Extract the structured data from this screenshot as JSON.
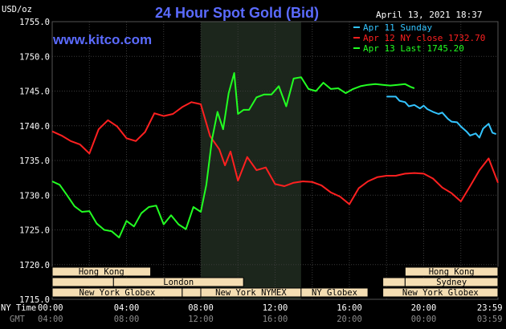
{
  "chart_data": {
    "type": "line",
    "title": "24 Hour Spot Gold (Bid)",
    "website": "www.kitco.com",
    "datetime": "April 13, 2021 18:37",
    "ylabel": "USD/oz",
    "ylim": [
      1715,
      1755
    ],
    "y_ticks": [
      "1755.0",
      "1750.0",
      "1745.0",
      "1740.0",
      "1735.0",
      "1730.0",
      "1725.0",
      "1720.0",
      "1715.0"
    ],
    "grid": true,
    "legend_position": "top-right",
    "x_hours": [
      0,
      24
    ],
    "x_axis_labels": {
      "row1_label": "NY Time",
      "row2_label": "GMT",
      "ny_time": [
        "00:00",
        "04:00",
        "08:00",
        "12:00",
        "16:00",
        "20:00",
        "23:59"
      ],
      "gmt": [
        "04:00",
        "08:00",
        "12:00",
        "16:00",
        "20:00",
        "00:00",
        "03:59"
      ]
    },
    "highlight_range_hours": [
      8.0,
      13.4
    ],
    "series": [
      {
        "name": "Apr 11 Sunday",
        "color": "#33c4ff",
        "legend_label": "Apr 11 Sunday",
        "x": [
          18,
          18.5,
          18.7,
          19,
          19.2,
          19.5,
          19.8,
          20,
          20.2,
          20.5,
          20.8,
          21,
          21.3,
          21.5,
          21.8,
          22,
          22.3,
          22.5,
          22.8,
          23,
          23.2,
          23.5,
          23.7,
          23.9
        ],
        "y": [
          1744.2,
          1744.2,
          1743.6,
          1743.4,
          1742.8,
          1743.0,
          1742.5,
          1742.9,
          1742.4,
          1742.0,
          1741.7,
          1741.9,
          1741.0,
          1740.6,
          1740.5,
          1739.9,
          1739.2,
          1738.6,
          1738.9,
          1738.3,
          1739.6,
          1740.3,
          1739.0,
          1738.8
        ]
      },
      {
        "name": "Apr 12 NY close 1732.70",
        "color": "#ff2020",
        "legend_label": "Apr 12 NY close 1732.70",
        "x": [
          0,
          0.5,
          1,
          1.5,
          2,
          2.5,
          3,
          3.5,
          4,
          4.5,
          5,
          5.5,
          6,
          6.5,
          7,
          7.5,
          8,
          8.5,
          9,
          9.3,
          9.6,
          10,
          10.5,
          11,
          11.5,
          12,
          12.5,
          13,
          13.5,
          14,
          14.5,
          15,
          15.5,
          16,
          16.5,
          17,
          17.5,
          18,
          18.5,
          19,
          19.5,
          20,
          20.5,
          21,
          21.5,
          22,
          22.5,
          23,
          23.5,
          24
        ],
        "y": [
          1739.2,
          1738.6,
          1737.8,
          1737.3,
          1736.0,
          1739.5,
          1740.8,
          1739.9,
          1738.2,
          1737.8,
          1739.1,
          1741.8,
          1741.4,
          1741.7,
          1742.7,
          1743.4,
          1743.1,
          1738.5,
          1736.6,
          1734.3,
          1736.3,
          1732.1,
          1735.5,
          1733.6,
          1734.0,
          1731.6,
          1731.3,
          1731.8,
          1732.0,
          1731.9,
          1731.4,
          1730.4,
          1729.8,
          1728.7,
          1731.0,
          1732.0,
          1732.6,
          1732.8,
          1732.8,
          1733.1,
          1733.2,
          1733.1,
          1732.4,
          1731.1,
          1730.3,
          1729.1,
          1731.3,
          1733.6,
          1735.3,
          1731.8
        ]
      },
      {
        "name": "Apr 13 Last 1745.20",
        "color": "#22ff22",
        "legend_label": "Apr 13 Last 1745.20",
        "x": [
          0,
          0.4,
          0.8,
          1.2,
          1.6,
          2,
          2.4,
          2.8,
          3.2,
          3.6,
          4,
          4.4,
          4.8,
          5.2,
          5.6,
          6,
          6.4,
          6.8,
          7.2,
          7.6,
          8,
          8.3,
          8.6,
          8.9,
          9.2,
          9.5,
          9.8,
          10,
          10.3,
          10.6,
          11,
          11.4,
          11.8,
          12.2,
          12.6,
          13,
          13.4,
          13.8,
          14.2,
          14.6,
          15,
          15.4,
          15.8,
          16.2,
          16.6,
          17,
          17.4,
          17.8,
          18.2,
          18.6,
          19,
          19.3,
          19.5
        ],
        "y": [
          1732.0,
          1731.5,
          1730.0,
          1728.4,
          1727.6,
          1727.7,
          1725.9,
          1725.0,
          1724.8,
          1723.9,
          1726.3,
          1725.5,
          1727.4,
          1728.3,
          1728.5,
          1725.8,
          1727.1,
          1725.8,
          1725.1,
          1728.3,
          1727.6,
          1731.5,
          1738.0,
          1742.0,
          1739.5,
          1744.7,
          1747.6,
          1741.7,
          1742.3,
          1742.3,
          1744.1,
          1744.5,
          1744.5,
          1745.7,
          1742.8,
          1746.8,
          1747.0,
          1745.3,
          1745.0,
          1746.2,
          1745.3,
          1745.4,
          1744.7,
          1745.3,
          1745.7,
          1745.9,
          1746.0,
          1745.9,
          1745.8,
          1745.9,
          1746.0,
          1745.6,
          1745.4
        ]
      }
    ],
    "sessions": {
      "row1": [
        {
          "label": "Hong Kong",
          "start": 0.0,
          "end": 5.3,
          "color": "#f5deb3"
        },
        {
          "label": "Hong Kong",
          "start": 19.0,
          "end": 24.0,
          "color": "#f5deb3"
        }
      ],
      "row2": [
        {
          "label": "",
          "start": 0.0,
          "end": 3.3,
          "color": "#f5deb3"
        },
        {
          "label": "London",
          "start": 3.3,
          "end": 10.3,
          "color": "#f5deb3"
        },
        {
          "label": "",
          "start": 17.8,
          "end": 19.0,
          "color": "#f5deb3"
        },
        {
          "label": "Sydney",
          "start": 19.0,
          "end": 24.0,
          "color": "#f5deb3"
        }
      ],
      "row3": [
        {
          "label": "New York Globex",
          "start": 0.0,
          "end": 7.0,
          "color": "#f5deb3"
        },
        {
          "label": "",
          "start": 7.0,
          "end": 8.0,
          "color": "#f5deb3"
        },
        {
          "label": "New York NYMEX",
          "start": 8.0,
          "end": 13.4,
          "color": "#f5deb3"
        },
        {
          "label": "NY Globex",
          "start": 13.4,
          "end": 17.0,
          "color": "#f5deb3"
        },
        {
          "label": "New York Globex",
          "start": 17.8,
          "end": 24.0,
          "color": "#f5deb3"
        }
      ]
    }
  }
}
